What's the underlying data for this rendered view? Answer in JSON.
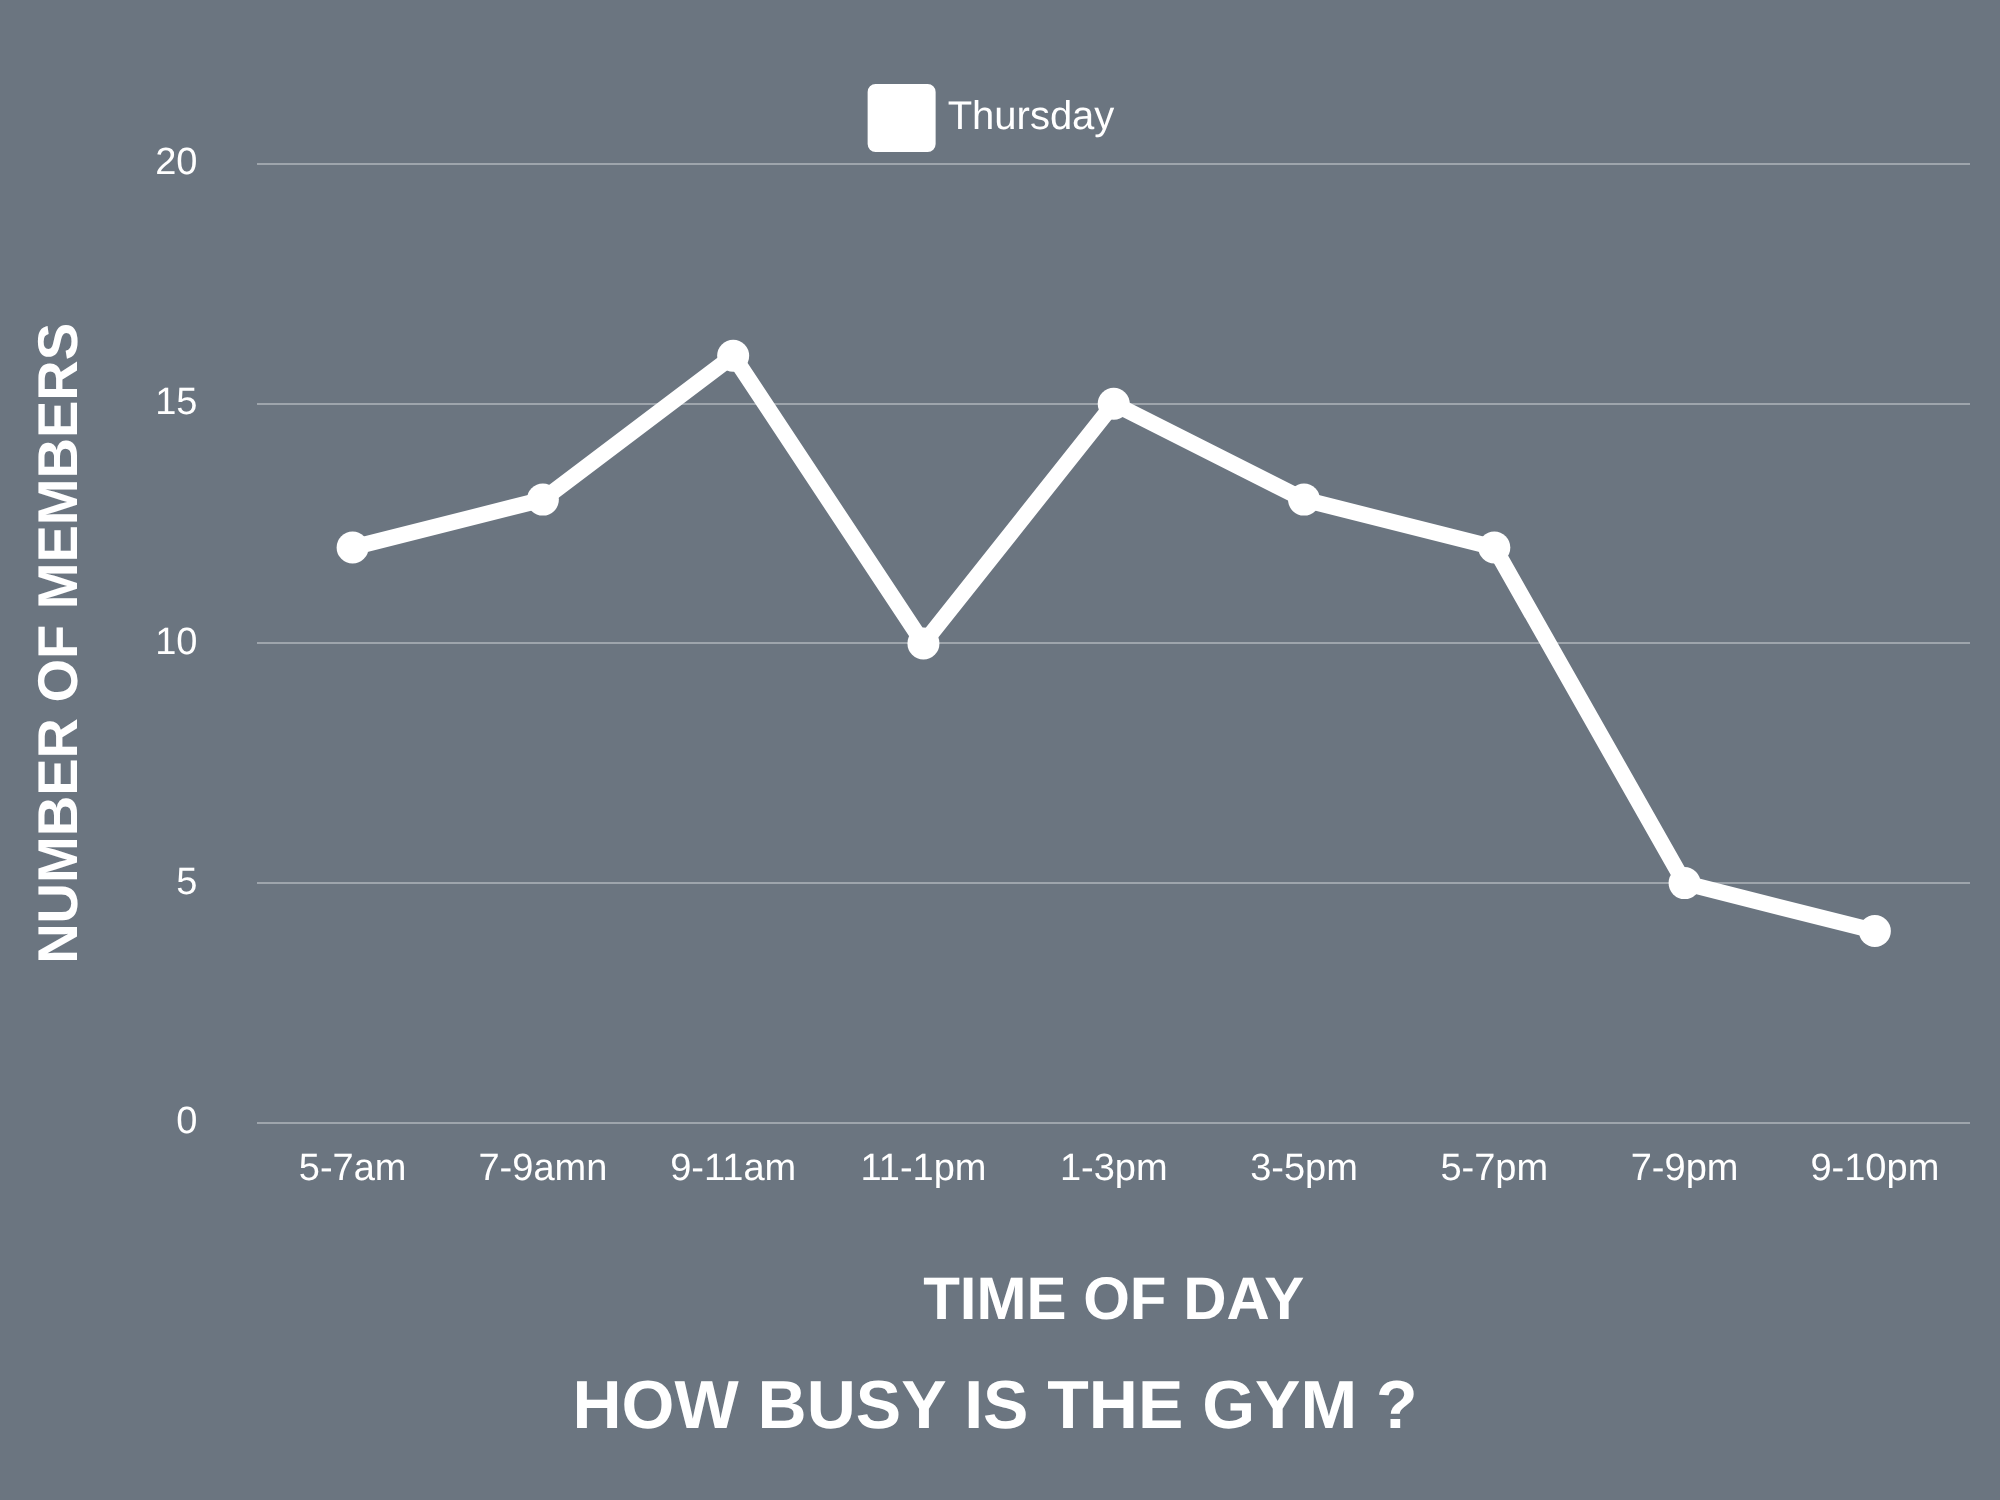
{
  "chart_data": {
    "type": "line",
    "title": "HOW BUSY IS THE GYM ?",
    "xlabel": "TIME OF DAY",
    "ylabel": "NUMBER OF MEMBERS",
    "categories": [
      "5-7am",
      "7-9amn",
      "9-11am",
      "11-1pm",
      "1-3pm",
      "3-5pm",
      "5-7pm",
      "7-9pm",
      "9-10pm"
    ],
    "series": [
      {
        "name": "Thursday",
        "color": "#ffffff",
        "values": [
          12,
          13,
          16,
          10,
          15,
          13,
          12,
          5,
          4
        ]
      }
    ],
    "ylim": [
      0,
      20
    ],
    "yticks": [
      0,
      5,
      10,
      15,
      20
    ],
    "grid": "y",
    "legend": "top",
    "marker": "circle",
    "line_style": "solid"
  }
}
